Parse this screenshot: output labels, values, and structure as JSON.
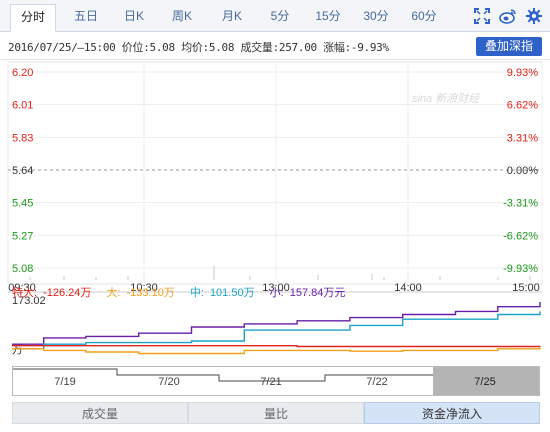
{
  "tabs": [
    {
      "label": "分时",
      "active": true
    },
    {
      "label": "五日",
      "active": false
    },
    {
      "label": "日K",
      "active": false
    },
    {
      "label": "周K",
      "active": false
    },
    {
      "label": "月K",
      "active": false
    },
    {
      "label": "5分",
      "active": false
    },
    {
      "label": "15分",
      "active": false
    },
    {
      "label": "30分",
      "active": false
    },
    {
      "label": "60分",
      "active": false
    }
  ],
  "tool_icons": [
    "fullscreen-icon",
    "weibo-icon",
    "settings-icon"
  ],
  "info": {
    "text": "2016/07/25/—15:00 价位:5.08 均价:5.08 成交量:257.00 涨幅:-9.93%",
    "button": "叠加深指"
  },
  "watermark": "sina 新浪财经",
  "colors": {
    "up": "#e2231a",
    "down": "#1b9a1b",
    "flat": "#333333",
    "purple": "#6a1fa8",
    "cyan": "#1aa3c8",
    "orange": "#f2a01a",
    "red": "#e2231a",
    "accent": "#2f62c9"
  },
  "chart_data": [
    {
      "type": "line",
      "title": "",
      "yticks_left": [
        "6.20",
        "6.01",
        "5.83",
        "5.64",
        "5.45",
        "5.27",
        "5.08"
      ],
      "yticks_right": [
        "9.93%",
        "6.62%",
        "3.31%",
        "0.00%",
        "-3.31%",
        "-6.62%",
        "-9.93%"
      ],
      "ylim": [
        5.08,
        6.2
      ],
      "xticks": [
        "09:30",
        "10:30",
        "13:00",
        "14:00",
        "15:00"
      ],
      "reference_price": "5.64",
      "series": []
    },
    {
      "type": "line",
      "legend": [
        {
          "label": "特大:",
          "value": "-126.24万",
          "color": "#e2231a"
        },
        {
          "label": "大:",
          "value": "-133.10万",
          "color": "#f2a01a"
        },
        {
          "label": "中:",
          "value": "101.50万",
          "color": "#1aa3c8"
        },
        {
          "label": "小:",
          "value": "157.84万元",
          "color": "#6a1fa8"
        }
      ],
      "ytick_top": "173.02",
      "ytick_bottom": "万",
      "ylim": [
        -173.02,
        173.02
      ],
      "x": [
        0,
        0.06,
        0.14,
        0.24,
        0.34,
        0.44,
        0.54,
        0.64,
        0.74,
        0.84,
        0.92,
        1.0
      ],
      "series": [
        {
          "name": "小",
          "values": [
            -110,
            -70,
            -60,
            -40,
            0,
            20,
            40,
            60,
            80,
            100,
            130,
            160
          ]
        },
        {
          "name": "中",
          "values": [
            -140,
            -110,
            -100,
            -100,
            -90,
            -20,
            -20,
            10,
            50,
            50,
            80,
            100
          ]
        },
        {
          "name": "特大",
          "values": [
            -120,
            -120,
            -120,
            -120,
            -120,
            -120,
            -125,
            -125,
            -125,
            -125,
            -125,
            -126
          ]
        },
        {
          "name": "大",
          "values": [
            -140,
            -150,
            -160,
            -170,
            -170,
            -150,
            -150,
            -155,
            -150,
            -150,
            -140,
            -133
          ]
        }
      ]
    }
  ],
  "navigator": {
    "dates": [
      "7/19",
      "7/20",
      "7/21",
      "7/22",
      "7/25"
    ],
    "selected": "7/25"
  },
  "bottom_tabs": [
    {
      "label": "成交量",
      "active": false
    },
    {
      "label": "量比",
      "active": false
    },
    {
      "label": "资金净流入",
      "active": true
    }
  ]
}
